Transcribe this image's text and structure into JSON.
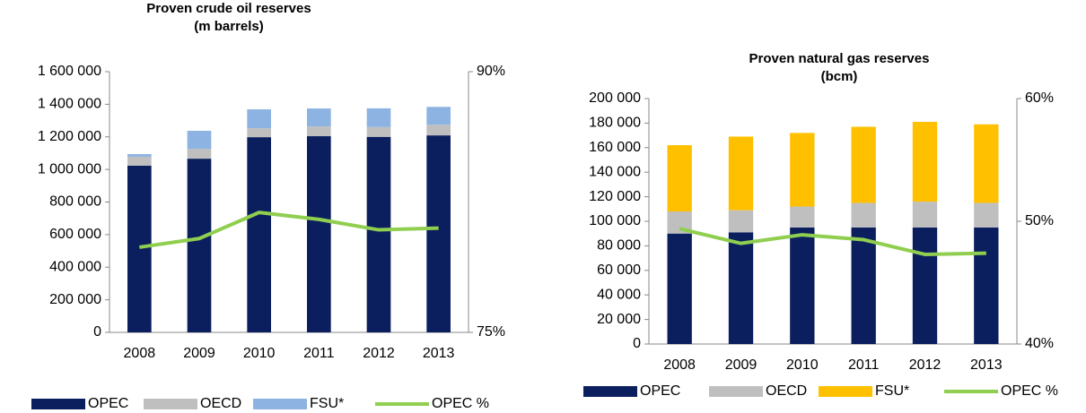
{
  "chart_data": [
    {
      "type": "bar",
      "title": "Proven crude oil reserves",
      "subtitle": "(m barrels)",
      "categories": [
        "2008",
        "2009",
        "2010",
        "2011",
        "2012",
        "2013"
      ],
      "series": [
        {
          "name": "OPEC",
          "color": "#0b1f5e",
          "values": [
            1023000,
            1066000,
            1198000,
            1204000,
            1200000,
            1209000
          ]
        },
        {
          "name": "OECD",
          "color": "#bfbfbf",
          "values": [
            55000,
            61000,
            55000,
            60000,
            60000,
            65000
          ]
        },
        {
          "name": "FSU*",
          "color": "#8db3e2",
          "values": [
            16000,
            110000,
            116000,
            110000,
            115000,
            110000
          ]
        },
        {
          "name": "OPEC %",
          "type": "line",
          "axis": "y2",
          "color": "#8fce4f",
          "values": [
            79.9,
            80.4,
            81.9,
            81.5,
            80.9,
            81.0
          ]
        }
      ],
      "ylim": [
        0,
        1600000
      ],
      "yticks": [
        0,
        {
          "value": 200000,
          "label": "200 000"
        },
        {
          "value": 400000,
          "label": "400 000"
        },
        {
          "value": 600000,
          "label": "600 000"
        },
        {
          "value": 800000,
          "label": "800 000"
        },
        {
          "value": 1000000,
          "label": "1 000 000"
        },
        {
          "value": 1200000,
          "label": "1 200 000"
        },
        {
          "value": 1400000,
          "label": "1 400 000"
        },
        {
          "value": 1600000,
          "label": "1 600 000"
        }
      ],
      "y2lim": [
        75,
        90
      ],
      "y2ticks": [
        {
          "value": 75,
          "label": "75%"
        },
        {
          "value": 90,
          "label": "90%"
        }
      ],
      "stacked": true,
      "grid": false,
      "legend": "bottom"
    },
    {
      "type": "bar",
      "title": "Proven natural gas reserves",
      "subtitle": "(bcm)",
      "categories": [
        "2008",
        "2009",
        "2010",
        "2011",
        "2012",
        "2013"
      ],
      "series": [
        {
          "name": "OPEC",
          "color": "#0b1f5e",
          "values": [
            90000,
            91000,
            95000,
            95000,
            95000,
            95000
          ]
        },
        {
          "name": "OECD",
          "color": "#bfbfbf",
          "values": [
            18000,
            18000,
            17000,
            20000,
            21000,
            20000
          ]
        },
        {
          "name": "FSU*",
          "color": "#ffc000",
          "values": [
            54000,
            60000,
            60000,
            62000,
            65000,
            64000
          ]
        },
        {
          "name": "OPEC %",
          "type": "line",
          "axis": "y2",
          "color": "#8fce4f",
          "values": [
            49.4,
            48.2,
            48.9,
            48.5,
            47.3,
            47.4
          ]
        }
      ],
      "ylim": [
        0,
        200000
      ],
      "yticks": [
        0,
        {
          "value": 20000,
          "label": "20 000"
        },
        {
          "value": 40000,
          "label": "40 000"
        },
        {
          "value": 60000,
          "label": "60 000"
        },
        {
          "value": 80000,
          "label": "80 000"
        },
        {
          "value": 100000,
          "label": "100 000"
        },
        {
          "value": 120000,
          "label": "120 000"
        },
        {
          "value": 140000,
          "label": "140 000"
        },
        {
          "value": 160000,
          "label": "160 000"
        },
        {
          "value": 180000,
          "label": "180 000"
        },
        {
          "value": 200000,
          "label": "200 000"
        }
      ],
      "y2lim": [
        40,
        60
      ],
      "y2ticks": [
        {
          "value": 40,
          "label": "40%"
        },
        {
          "value": 50,
          "label": "50%"
        },
        {
          "value": 60,
          "label": "60%"
        }
      ],
      "stacked": true,
      "grid": false,
      "legend": "bottom"
    }
  ]
}
